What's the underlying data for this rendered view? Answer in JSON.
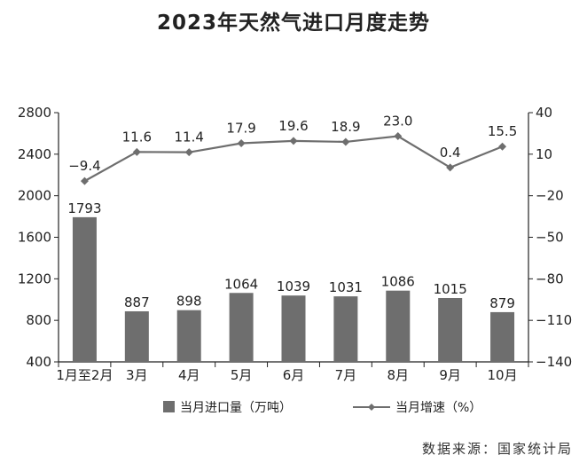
{
  "chart_data": {
    "type": "bar",
    "title": "2023年天然气进口月度走势",
    "categories": [
      "1月至2月",
      "3月",
      "4月",
      "5月",
      "6月",
      "7月",
      "8月",
      "9月",
      "10月"
    ],
    "series": [
      {
        "name": "当月进口量（万吨）",
        "type": "bar",
        "axis": "left",
        "values": [
          1793,
          887,
          898,
          1064,
          1039,
          1031,
          1086,
          1015,
          879
        ],
        "labels": [
          "1793",
          "887",
          "898",
          "1064",
          "1039",
          "1031",
          "1086",
          "1015",
          "879"
        ]
      },
      {
        "name": "当月增速（%）",
        "type": "line",
        "axis": "right",
        "values": [
          -9.4,
          11.6,
          11.4,
          17.9,
          19.6,
          18.9,
          23.0,
          0.4,
          15.5
        ],
        "labels": [
          "−9.4",
          "11.6",
          "11.4",
          "17.9",
          "19.6",
          "18.9",
          "23.0",
          "0.4",
          "15.5"
        ]
      }
    ],
    "y_left": {
      "lim": [
        400,
        2800
      ],
      "ticks": [
        "400",
        "800",
        "1200",
        "1600",
        "2000",
        "2400",
        "2800"
      ],
      "tick_values": [
        400,
        800,
        1200,
        1600,
        2000,
        2400,
        2800
      ]
    },
    "y_right": {
      "lim": [
        -140,
        40
      ],
      "ticks": [
        "−140",
        "−110",
        "−80",
        "−50",
        "−20",
        "10",
        "40"
      ],
      "tick_values": [
        -140,
        -110,
        -80,
        -50,
        -20,
        10,
        40
      ]
    },
    "legend_position": "bottom",
    "grid": false,
    "colors": {
      "bar": "#6e6e6e",
      "line": "#6e6e6e",
      "marker": "#6e6e6e",
      "axis": "#222222"
    }
  },
  "source": "数据来源：国家统计局"
}
